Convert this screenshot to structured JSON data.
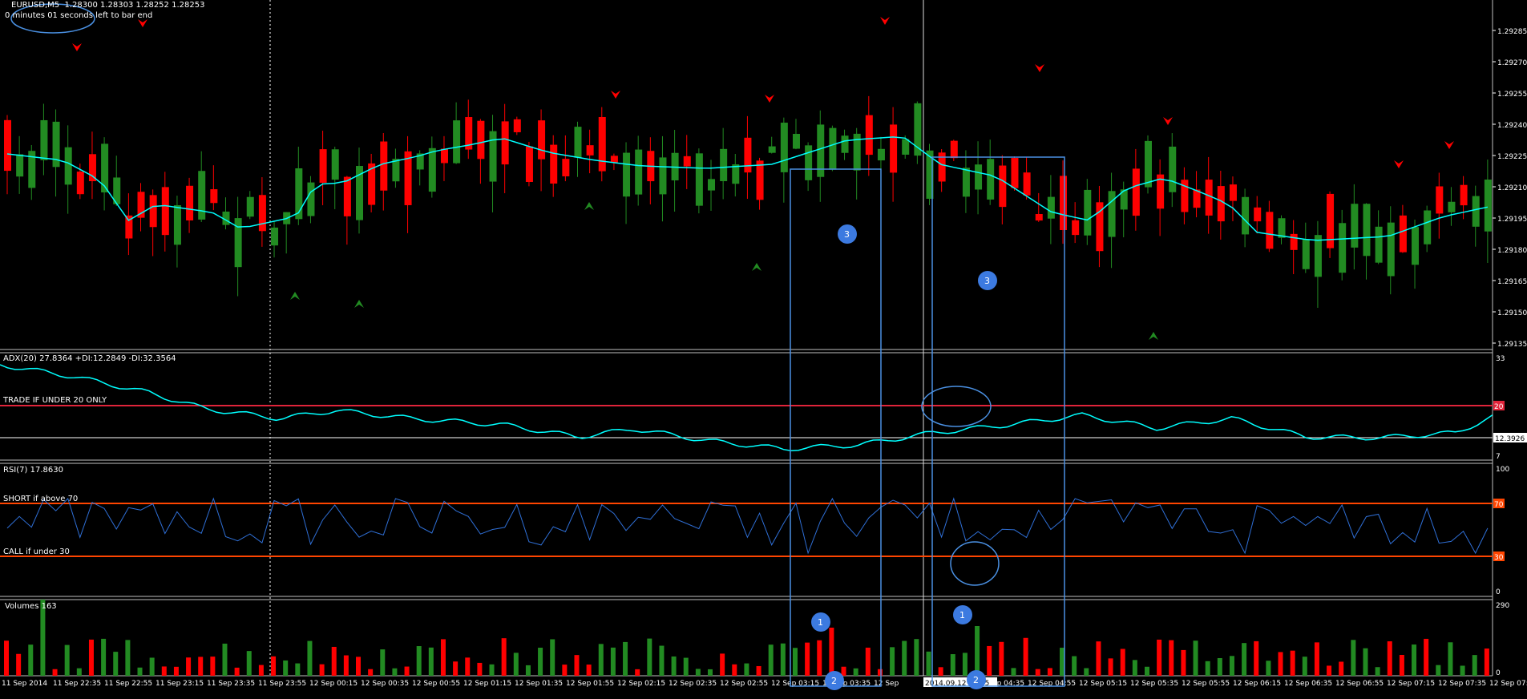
{
  "window": {
    "symbol": "EURUSD,M5",
    "ohlc": "1.28300 1.28303 1.28252 1.28253",
    "countdown": "0 minutes 01 seconds left to bar end"
  },
  "panes": {
    "price": {
      "axis_labels": [
        "1.29285",
        "1.29270",
        "1.29255",
        "1.29240",
        "1.29225",
        "1.29210",
        "1.29195",
        "1.29180",
        "1.29165",
        "1.29150",
        "1.29135"
      ]
    },
    "adx": {
      "title": "ADX(20) 27.8364 +DI:12.2849 -DI:32.3564",
      "note": "TRADE IF UNDER 20 ONLY",
      "axis_top": "33",
      "axis_bottom": "7",
      "level_label": "20",
      "current_label": "12.3926"
    },
    "rsi": {
      "title": "RSI(7) 17.8630",
      "note_short": "SHORT if above 70",
      "note_call": "CALL if under 30",
      "axis_top": "100",
      "axis_bottom": "0",
      "level_high_label": "70",
      "level_low_label": "30"
    },
    "volumes": {
      "title": "Volumes 163",
      "axis_top": "290",
      "axis_bottom": "0"
    }
  },
  "time_axis": [
    "11 Sep 2014",
    "11 Sep 22:35",
    "11 Sep 22:55",
    "11 Sep 23:15",
    "11 Sep 23:35",
    "11 Sep 23:55",
    "12 Sep 00:15",
    "12 Sep 00:35",
    "12 Sep 00:55",
    "12 Sep 01:15",
    "12 Sep 01:35",
    "12 Sep 01:55",
    "12 Sep 02:15",
    "12 Sep 02:35",
    "12 Sep 02:55",
    "12 Sep 03:15",
    "12 Sep 03:35",
    "12 Sep",
    "2014.09.12 04:15",
    "12 Sep 04:35",
    "12 Sep 04:55",
    "12 Sep 05:15",
    "12 Sep 05:35",
    "12 Sep 05:55",
    "12 Sep 06:15",
    "12 Sep 06:35",
    "12 Sep 06:55",
    "12 Sep 07:15",
    "12 Sep 07:35",
    "12 Sep 07:5"
  ],
  "annotations": {
    "badge_three": "3",
    "badge_one": "1",
    "badge_two": "2"
  },
  "colors": {
    "bull": "#228b22",
    "bear": "#ff0000",
    "ma": "#00ffff",
    "rsi_line": "#2f6fd6",
    "level_red": "#e0243a",
    "level_orange": "#ff4500",
    "box": "#4a90e2",
    "badge": "#3c7ae0",
    "pane_border": "#c0c0c0"
  },
  "chart_data": {
    "type": "candlestick",
    "symbol": "EURUSD",
    "timeframe": "M5",
    "price_range": [
      1.2913,
      1.293
    ],
    "indicators": [
      "ADX(20)",
      "RSI(7)",
      "Volumes"
    ],
    "adx_level": 20,
    "rsi_levels": [
      70,
      30
    ]
  }
}
